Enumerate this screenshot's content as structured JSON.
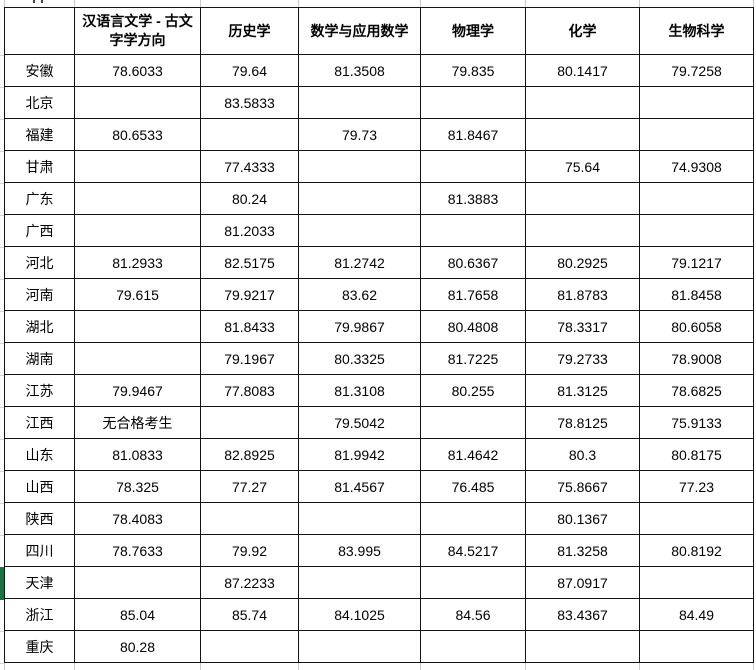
{
  "table": {
    "corner_label": "",
    "columns": [
      "汉语言文学 - 古文字学方向",
      "历史学",
      "数学与应用数学",
      "物理学",
      "化学",
      "生物科学"
    ],
    "rows": [
      {
        "province": "安徽",
        "values": [
          "78.6033",
          "79.64",
          "81.3508",
          "79.835",
          "80.1417",
          "79.7258"
        ],
        "selected": false
      },
      {
        "province": "北京",
        "values": [
          "",
          "83.5833",
          "",
          "",
          "",
          ""
        ],
        "selected": false
      },
      {
        "province": "福建",
        "values": [
          "80.6533",
          "",
          "79.73",
          "81.8467",
          "",
          ""
        ],
        "selected": false
      },
      {
        "province": "甘肃",
        "values": [
          "",
          "77.4333",
          "",
          "",
          "75.64",
          "74.9308"
        ],
        "selected": false
      },
      {
        "province": "广东",
        "values": [
          "",
          "80.24",
          "",
          "81.3883",
          "",
          ""
        ],
        "selected": false
      },
      {
        "province": "广西",
        "values": [
          "",
          "81.2033",
          "",
          "",
          "",
          ""
        ],
        "selected": false
      },
      {
        "province": "河北",
        "values": [
          "81.2933",
          "82.5175",
          "81.2742",
          "80.6367",
          "80.2925",
          "79.1217"
        ],
        "selected": false
      },
      {
        "province": "河南",
        "values": [
          "79.615",
          "79.9217",
          "83.62",
          "81.7658",
          "81.8783",
          "81.8458"
        ],
        "selected": false
      },
      {
        "province": "湖北",
        "values": [
          "",
          "81.8433",
          "79.9867",
          "80.4808",
          "78.3317",
          "80.6058"
        ],
        "selected": false
      },
      {
        "province": "湖南",
        "values": [
          "",
          "79.1967",
          "80.3325",
          "81.7225",
          "79.2733",
          "78.9008"
        ],
        "selected": false
      },
      {
        "province": "江苏",
        "values": [
          "79.9467",
          "77.8083",
          "81.3108",
          "80.255",
          "81.3125",
          "78.6825"
        ],
        "selected": false
      },
      {
        "province": "江西",
        "values": [
          "无合格考生",
          "",
          "79.5042",
          "",
          "78.8125",
          "75.9133"
        ],
        "selected": false
      },
      {
        "province": "山东",
        "values": [
          "81.0833",
          "82.8925",
          "81.9942",
          "81.4642",
          "80.3",
          "80.8175"
        ],
        "selected": false
      },
      {
        "province": "山西",
        "values": [
          "78.325",
          "77.27",
          "81.4567",
          "76.485",
          "75.8667",
          "77.23"
        ],
        "selected": false
      },
      {
        "province": "陕西",
        "values": [
          "78.4083",
          "",
          "",
          "",
          "80.1367",
          ""
        ],
        "selected": false
      },
      {
        "province": "四川",
        "values": [
          "78.7633",
          "79.92",
          "83.995",
          "84.5217",
          "81.3258",
          "80.8192"
        ],
        "selected": false
      },
      {
        "province": "天津",
        "values": [
          "",
          "87.2233",
          "",
          "",
          "87.0917",
          ""
        ],
        "selected": true
      },
      {
        "province": "浙江",
        "values": [
          "85.04",
          "85.74",
          "84.1025",
          "84.56",
          "83.4367",
          "84.49"
        ],
        "selected": false
      },
      {
        "province": "重庆",
        "values": [
          "80.28",
          "",
          "",
          "",
          "",
          ""
        ],
        "selected": false
      }
    ]
  },
  "colors": {
    "selection_green": "#1e7145",
    "cell_border": "#131313",
    "margin_gridline": "#c9c9c9",
    "background": "#ffffff"
  }
}
